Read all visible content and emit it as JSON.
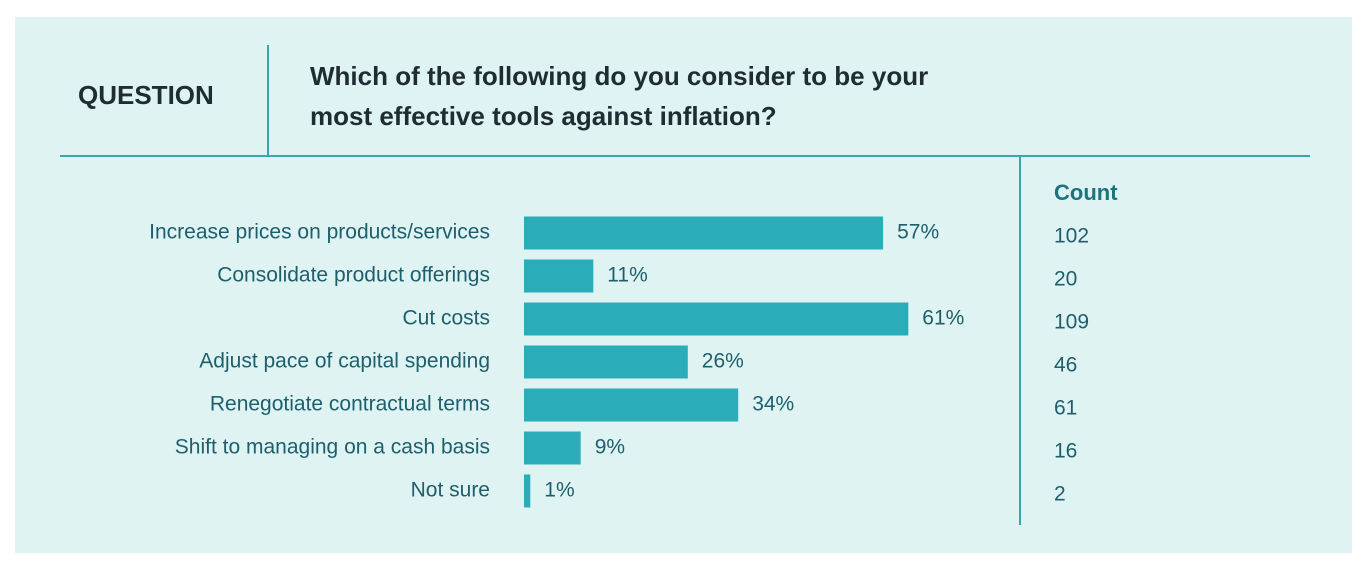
{
  "chart_data": {
    "type": "bar",
    "question_label": "QUESTION",
    "title": "Which of the following do you consider to be your most effective tools against inflation?",
    "categories": [
      "Increase prices on products/services",
      "Consolidate product offerings",
      "Cut costs",
      "Adjust pace of capital spending",
      "Renegotiate contractual terms",
      "Shift to managing on a cash basis",
      "Not sure"
    ],
    "values": [
      57,
      11,
      61,
      26,
      34,
      9,
      1
    ],
    "value_labels": [
      "57%",
      "11%",
      "61%",
      "26%",
      "34%",
      "9%",
      "1%"
    ],
    "color": "#2aadb8",
    "count_header": "Count",
    "counts": [
      102,
      20,
      109,
      46,
      61,
      16,
      2
    ]
  }
}
